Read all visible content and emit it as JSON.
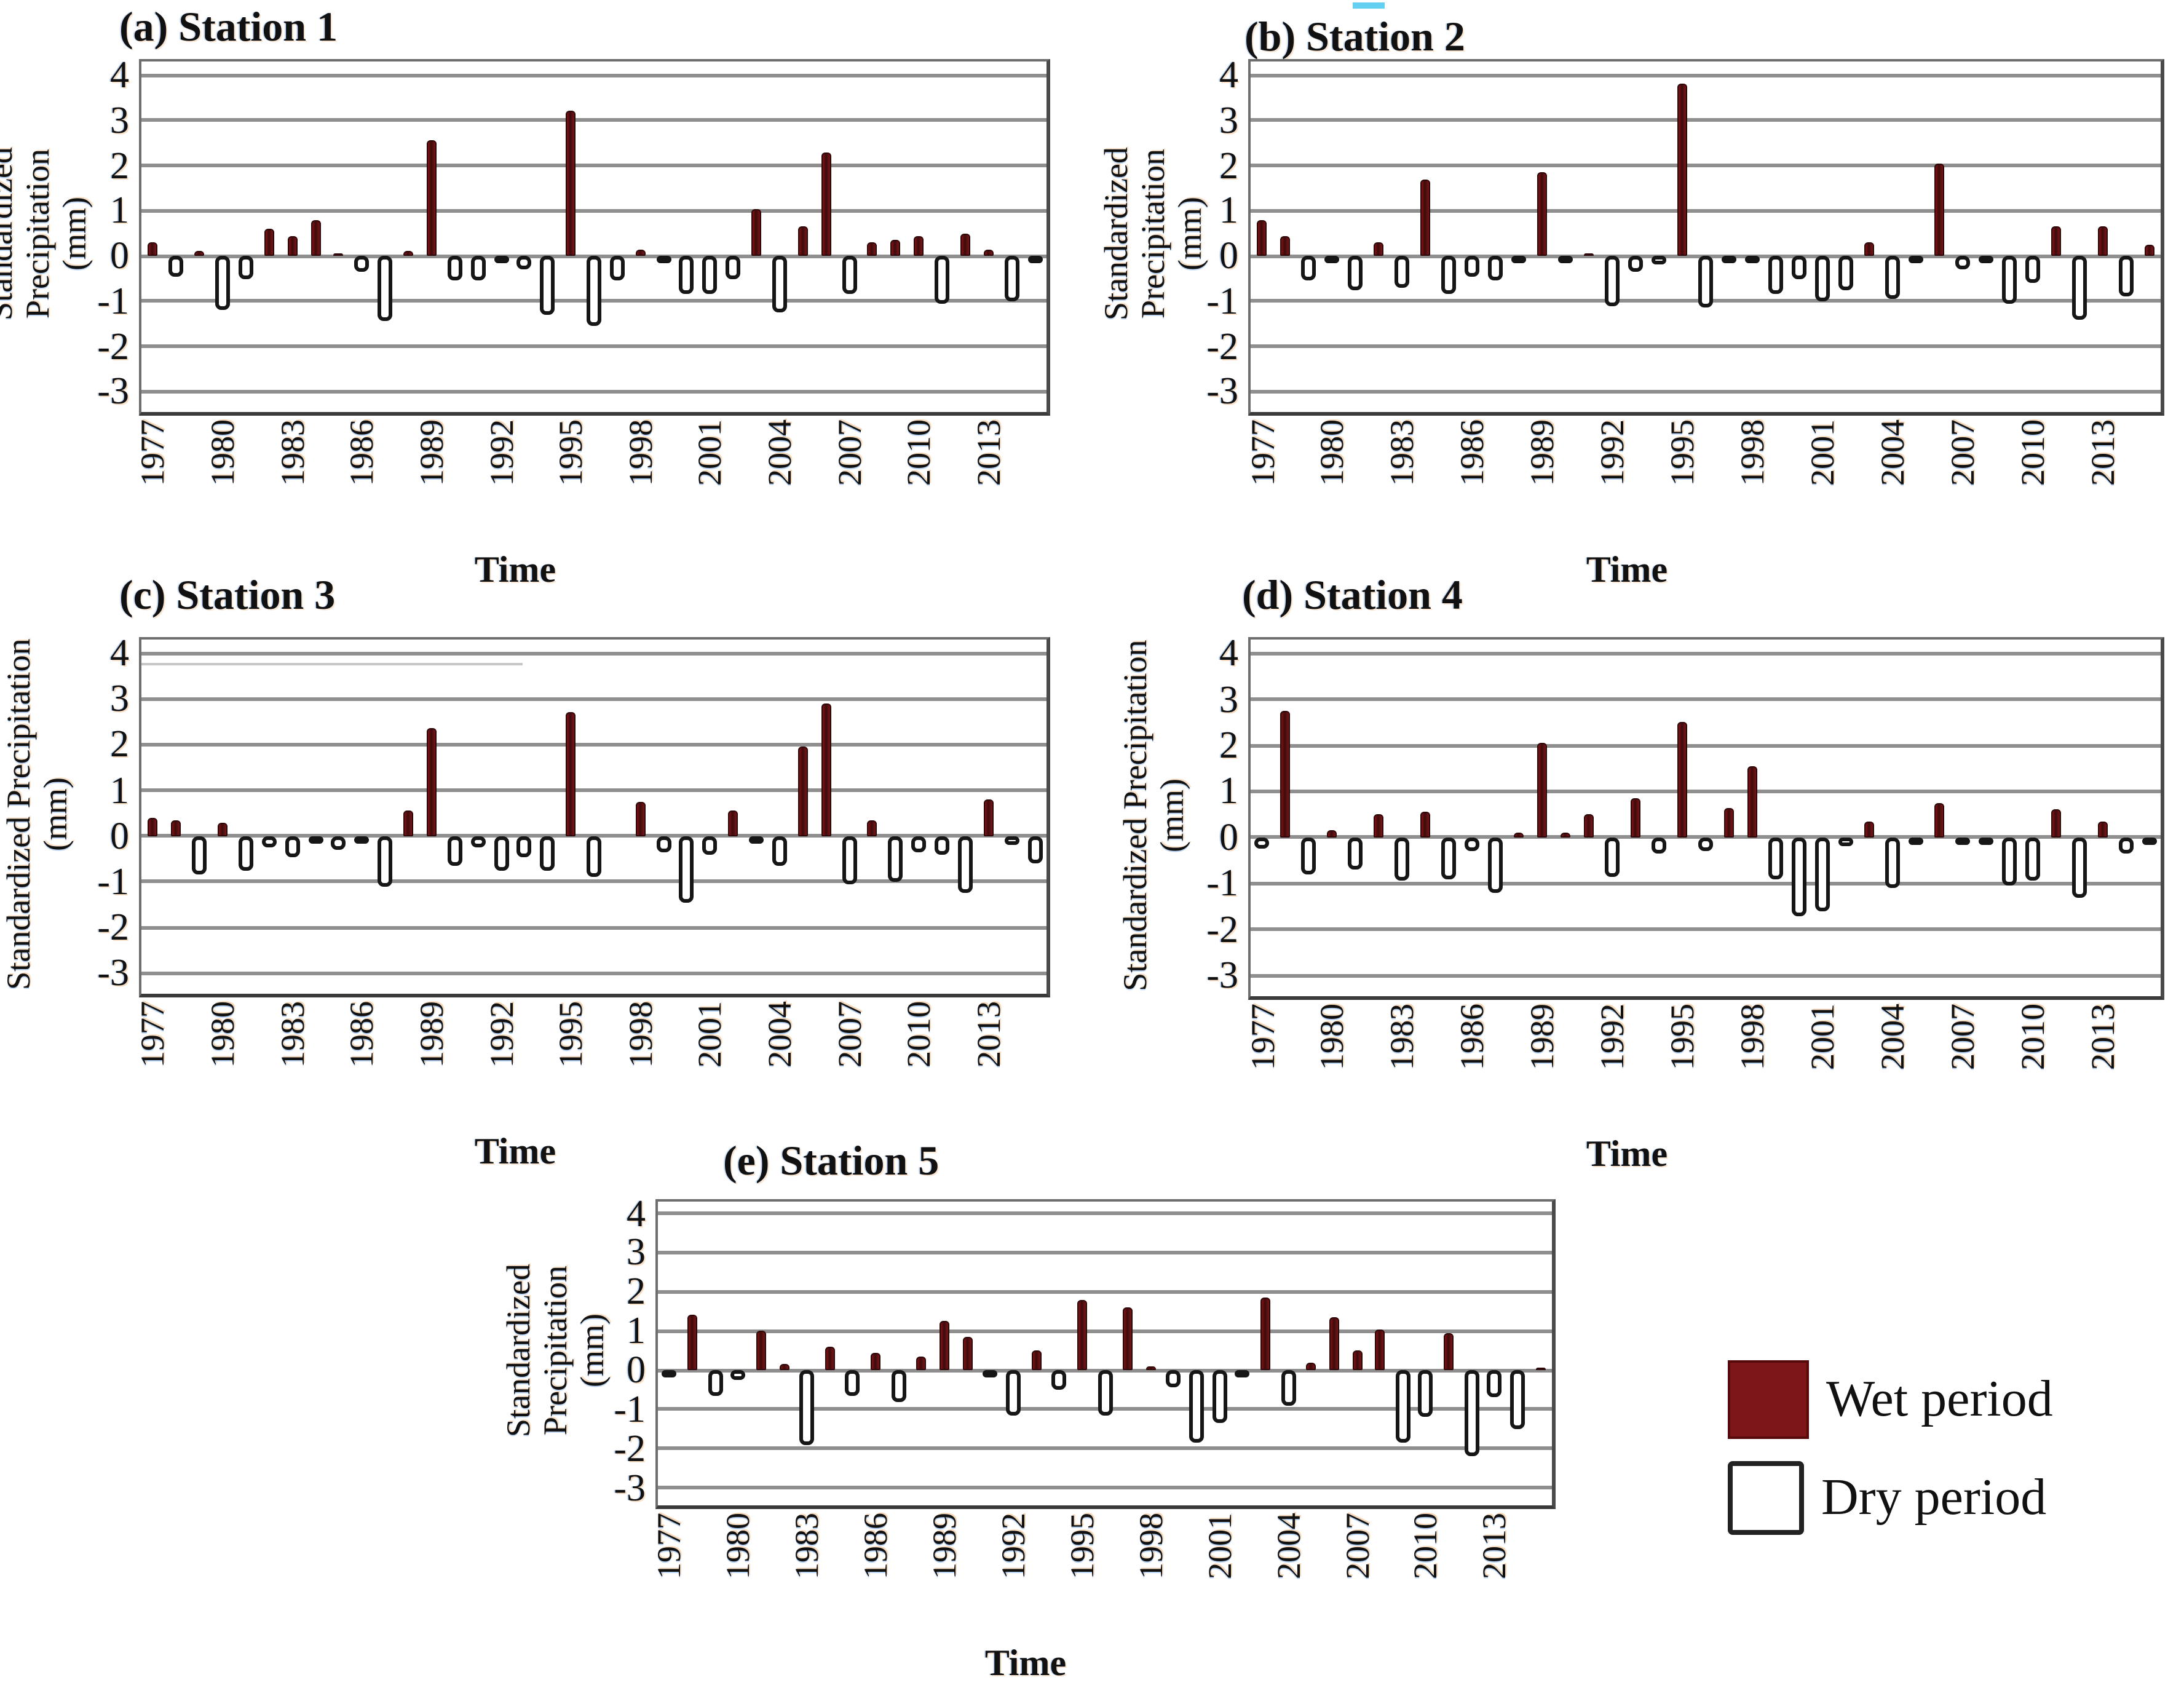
{
  "figure": {
    "y_axis_label_line1": "Standardized Precipitation",
    "y_axis_label_line2": "(mm)",
    "x_axis_label": "Time",
    "y_ticks": [
      "4",
      "3",
      "2",
      "1",
      "0",
      "-1",
      "-2",
      "-3"
    ],
    "legend": {
      "wet_label": "Wet period",
      "dry_label": "Dry period"
    },
    "colors": {
      "wet_fill": "#5e1013",
      "wet_legend_swatch": "#7c1618",
      "dry_fill": "#ffffff",
      "bar_outline": "#161616",
      "gridline": "#8f8f8f",
      "axis_border": "#4a4a4a",
      "text": "#111111"
    }
  },
  "chart_data": [
    {
      "id": "s1",
      "type": "bar",
      "title": "(a) Station 1",
      "xlabel": "Time",
      "ylabel": "Standardized Precipitation (mm)",
      "ylim": [
        -3.45,
        4.3
      ],
      "grid": true,
      "legend_position": "bottom-right-of-figure",
      "x_tick_years": [
        1977,
        1980,
        1983,
        1986,
        1989,
        1992,
        1995,
        1998,
        2001,
        2004,
        2007,
        2010,
        2013
      ],
      "years": [
        1977,
        1978,
        1979,
        1980,
        1981,
        1982,
        1983,
        1984,
        1985,
        1986,
        1987,
        1988,
        1989,
        1990,
        1991,
        1992,
        1993,
        1994,
        1995,
        1996,
        1997,
        1998,
        1999,
        2000,
        2001,
        2002,
        2003,
        2004,
        2005,
        2006,
        2007,
        2008,
        2009,
        2010,
        2011,
        2012,
        2013,
        2014,
        2015
      ],
      "values": [
        0.3,
        -0.45,
        0.1,
        -1.2,
        -0.5,
        0.6,
        0.45,
        0.8,
        0.05,
        -0.35,
        -1.45,
        0.1,
        2.55,
        -0.55,
        -0.55,
        -0.15,
        -0.3,
        -1.3,
        3.2,
        -1.55,
        -0.55,
        0.15,
        -0.05,
        -0.85,
        -0.85,
        -0.5,
        1.05,
        -1.25,
        0.65,
        2.3,
        -0.85,
        0.3,
        0.35,
        0.45,
        -1.05,
        0.5,
        0.15,
        -1.0,
        -0.1
      ]
    },
    {
      "id": "s2",
      "type": "bar",
      "title": "(b) Station 2",
      "xlabel": "Time",
      "ylabel": "Standardized Precipitation (mm)",
      "ylim": [
        -3.45,
        4.3
      ],
      "grid": true,
      "x_tick_years": [
        1977,
        1980,
        1983,
        1986,
        1989,
        1992,
        1995,
        1998,
        2001,
        2004,
        2007,
        2010,
        2013
      ],
      "years": [
        1977,
        1978,
        1979,
        1980,
        1981,
        1982,
        1983,
        1984,
        1985,
        1986,
        1987,
        1988,
        1989,
        1990,
        1991,
        1992,
        1993,
        1994,
        1995,
        1996,
        1997,
        1998,
        1999,
        2000,
        2001,
        2002,
        2003,
        2004,
        2005,
        2006,
        2007,
        2008,
        2009,
        2010,
        2011,
        2012,
        2013,
        2014,
        2015
      ],
      "values": [
        0.8,
        0.45,
        -0.55,
        -0.05,
        -0.75,
        0.3,
        -0.7,
        1.7,
        -0.85,
        -0.45,
        -0.55,
        -0.05,
        1.85,
        -0.15,
        0.05,
        -1.1,
        -0.35,
        -0.2,
        3.8,
        -1.15,
        -0.1,
        -0.05,
        -0.85,
        -0.5,
        -1.0,
        -0.75,
        0.3,
        -0.95,
        -0.1,
        2.05,
        -0.3,
        -0.05,
        -1.05,
        -0.6,
        0.65,
        -1.4,
        0.65,
        -0.9,
        0.25
      ]
    },
    {
      "id": "s3",
      "type": "bar",
      "title": "(c) Station 3",
      "xlabel": "Time",
      "ylabel": "Standardized Precipitation (mm)",
      "ylim": [
        -3.45,
        4.3
      ],
      "grid": true,
      "x_tick_years": [
        1977,
        1980,
        1983,
        1986,
        1989,
        1992,
        1995,
        1998,
        2001,
        2004,
        2007,
        2010,
        2013
      ],
      "years": [
        1977,
        1978,
        1979,
        1980,
        1981,
        1982,
        1983,
        1984,
        1985,
        1986,
        1987,
        1988,
        1989,
        1990,
        1991,
        1992,
        1993,
        1994,
        1995,
        1996,
        1997,
        1998,
        1999,
        2000,
        2001,
        2002,
        2003,
        2004,
        2005,
        2006,
        2007,
        2008,
        2009,
        2010,
        2011,
        2012,
        2013,
        2014,
        2015
      ],
      "values": [
        0.4,
        0.35,
        -0.85,
        0.3,
        -0.75,
        -0.25,
        -0.45,
        -0.05,
        -0.3,
        -0.15,
        -1.1,
        0.55,
        2.35,
        -0.65,
        -0.25,
        -0.75,
        -0.45,
        -0.75,
        2.7,
        -0.9,
        0,
        0.75,
        -0.35,
        -1.45,
        -0.4,
        0.55,
        -0.1,
        -0.65,
        1.95,
        2.9,
        -1.05,
        0.35,
        -1.0,
        -0.35,
        -0.4,
        -1.25,
        0.8,
        -0.2,
        -0.6
      ]
    },
    {
      "id": "s4",
      "type": "bar",
      "title": "(d) Station 4",
      "xlabel": "Time",
      "ylabel": "Standardized Precipitation (mm)",
      "ylim": [
        -3.45,
        4.3
      ],
      "grid": true,
      "x_tick_years": [
        1977,
        1980,
        1983,
        1986,
        1989,
        1992,
        1995,
        1998,
        2001,
        2004,
        2007,
        2010,
        2013
      ],
      "years": [
        1977,
        1978,
        1979,
        1980,
        1981,
        1982,
        1983,
        1984,
        1985,
        1986,
        1987,
        1988,
        1989,
        1990,
        1991,
        1992,
        1993,
        1994,
        1995,
        1996,
        1997,
        1998,
        1999,
        2000,
        2001,
        2002,
        2003,
        2004,
        2005,
        2006,
        2007,
        2008,
        2009,
        2010,
        2011,
        2012,
        2013,
        2014,
        2015
      ],
      "values": [
        -0.25,
        2.75,
        -0.8,
        0.15,
        -0.7,
        0.5,
        -0.95,
        0.55,
        -0.9,
        -0.3,
        -1.2,
        0.1,
        2.05,
        0.1,
        0.5,
        -0.85,
        0.85,
        -0.35,
        2.5,
        -0.3,
        0.65,
        1.55,
        -0.9,
        -1.7,
        -1.6,
        -0.2,
        0.35,
        -1.1,
        -0.15,
        0.75,
        -0.1,
        -0.05,
        -1.05,
        -0.95,
        0.6,
        -1.3,
        0.35,
        -0.35,
        -0.1
      ]
    },
    {
      "id": "s5",
      "type": "bar",
      "title": "(e) Station 5",
      "xlabel": "Time",
      "ylabel": "Standardized Precipitation (mm)",
      "ylim": [
        -3.45,
        4.3
      ],
      "grid": true,
      "x_tick_years": [
        1977,
        1980,
        1983,
        1986,
        1989,
        1992,
        1995,
        1998,
        2001,
        2004,
        2007,
        2010,
        2013
      ],
      "years": [
        1977,
        1978,
        1979,
        1980,
        1981,
        1982,
        1983,
        1984,
        1985,
        1986,
        1987,
        1988,
        1989,
        1990,
        1991,
        1992,
        1993,
        1994,
        1995,
        1996,
        1997,
        1998,
        1999,
        2000,
        2001,
        2002,
        2003,
        2004,
        2005,
        2006,
        2007,
        2008,
        2009,
        2010,
        2011,
        2012,
        2013,
        2014,
        2015
      ],
      "values": [
        -0.2,
        1.4,
        -0.65,
        -0.25,
        1.0,
        0.15,
        -1.9,
        0.6,
        -0.65,
        0.45,
        -0.8,
        0.35,
        1.25,
        0.85,
        -0.1,
        -1.15,
        0.5,
        -0.5,
        1.8,
        -1.15,
        1.6,
        0.1,
        -0.45,
        -1.85,
        -1.35,
        -0.1,
        1.85,
        -0.9,
        0.2,
        1.35,
        0.5,
        1.05,
        -1.85,
        -1.2,
        0.95,
        -2.2,
        -0.7,
        -1.5,
        0.05
      ]
    }
  ]
}
